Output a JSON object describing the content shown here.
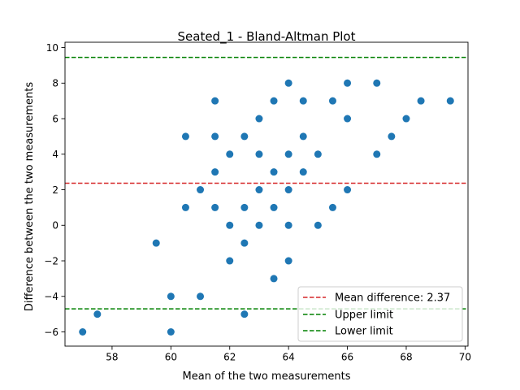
{
  "chart_data": {
    "type": "scatter",
    "title": "Seated_1 - Bland-Altman Plot",
    "xlabel": "Mean of the two measurements",
    "ylabel": "Difference between the two measurements",
    "xlim": [
      56.4,
      70.1
    ],
    "ylim": [
      -6.8,
      10.3
    ],
    "xticks": [
      58,
      60,
      62,
      64,
      66,
      68,
      70
    ],
    "yticks": [
      -6,
      -4,
      -2,
      0,
      2,
      4,
      6,
      8,
      10
    ],
    "xtick_labels": [
      "58",
      "60",
      "62",
      "64",
      "66",
      "68",
      "70"
    ],
    "ytick_labels": [
      "−6",
      "−4",
      "−2",
      "0",
      "2",
      "4",
      "6",
      "8",
      "10"
    ],
    "grid": false,
    "legend_position": "lower-right",
    "point_color": "#1f77b4",
    "points": [
      {
        "x": 57,
        "y": -6
      },
      {
        "x": 57.5,
        "y": -5
      },
      {
        "x": 59.5,
        "y": -1
      },
      {
        "x": 60,
        "y": -4
      },
      {
        "x": 60,
        "y": -6
      },
      {
        "x": 60.5,
        "y": 5
      },
      {
        "x": 60.5,
        "y": 1
      },
      {
        "x": 61,
        "y": 2
      },
      {
        "x": 61,
        "y": -4
      },
      {
        "x": 61.5,
        "y": 7
      },
      {
        "x": 61.5,
        "y": 5
      },
      {
        "x": 61.5,
        "y": 3
      },
      {
        "x": 61.5,
        "y": 1
      },
      {
        "x": 62,
        "y": 4
      },
      {
        "x": 62,
        "y": 0
      },
      {
        "x": 62,
        "y": -2
      },
      {
        "x": 62.5,
        "y": 5
      },
      {
        "x": 62.5,
        "y": 1
      },
      {
        "x": 62.5,
        "y": -1
      },
      {
        "x": 62.5,
        "y": -5
      },
      {
        "x": 63,
        "y": 6
      },
      {
        "x": 63,
        "y": 4
      },
      {
        "x": 63,
        "y": 2
      },
      {
        "x": 63,
        "y": 0
      },
      {
        "x": 63.5,
        "y": 7
      },
      {
        "x": 63.5,
        "y": 3
      },
      {
        "x": 63.5,
        "y": 1
      },
      {
        "x": 63.5,
        "y": -3
      },
      {
        "x": 64,
        "y": 8
      },
      {
        "x": 64,
        "y": 4
      },
      {
        "x": 64,
        "y": 2
      },
      {
        "x": 64,
        "y": 0
      },
      {
        "x": 64,
        "y": -2
      },
      {
        "x": 64.5,
        "y": 7
      },
      {
        "x": 64.5,
        "y": 5
      },
      {
        "x": 64.5,
        "y": 3
      },
      {
        "x": 65,
        "y": 4
      },
      {
        "x": 65,
        "y": 0
      },
      {
        "x": 65.5,
        "y": 7
      },
      {
        "x": 65.5,
        "y": 1
      },
      {
        "x": 66,
        "y": 8
      },
      {
        "x": 66,
        "y": 6
      },
      {
        "x": 66,
        "y": 2
      },
      {
        "x": 67,
        "y": 8
      },
      {
        "x": 67,
        "y": 4
      },
      {
        "x": 67.5,
        "y": 5
      },
      {
        "x": 68,
        "y": 6
      },
      {
        "x": 68.5,
        "y": 7
      },
      {
        "x": 69.5,
        "y": 7
      }
    ],
    "reference_lines": [
      {
        "y": 2.37,
        "color": "#d62728",
        "label": "Mean difference: 2.37"
      },
      {
        "y": 9.45,
        "color": "#008000",
        "label": "Upper limit"
      },
      {
        "y": -4.7,
        "color": "#008000",
        "label": "Lower limit"
      }
    ]
  }
}
